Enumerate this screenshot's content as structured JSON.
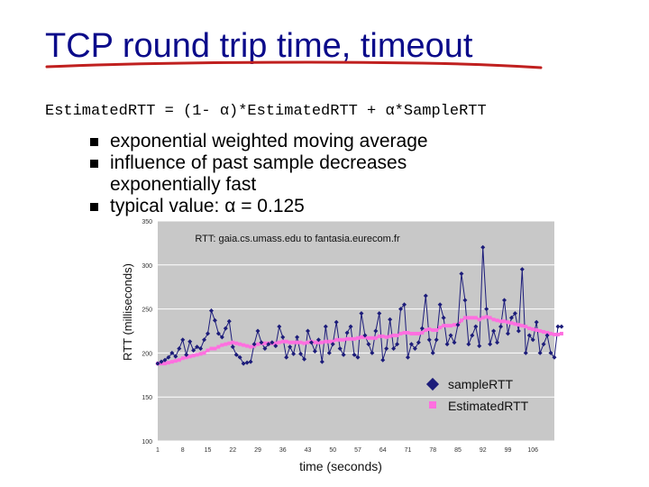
{
  "slide": {
    "title": "TCP round trip time, timeout",
    "formula": "EstimatedRTT = (1- α)*EstimatedRTT + α*SampleRTT",
    "bullets": [
      "exponential weighted moving average",
      "influence of past sample decreases exponentially fast",
      "typical value: α  = 0.125"
    ]
  },
  "colors": {
    "title": "#0b0b8a",
    "underline": "#c0201f",
    "sample": "#1c1c7a",
    "estimated": "#ff3fd6",
    "plot_bg": "#c8c8c8"
  },
  "chart_data": {
    "type": "line",
    "title": "RTT: gaia.cs.umass.edu to fantasia.eurecom.fr",
    "xlabel": "time (seconds)",
    "ylabel": "RTT (milliseconds)",
    "xlim": [
      1,
      112
    ],
    "ylim": [
      100,
      350
    ],
    "x_ticks": [
      1,
      8,
      15,
      22,
      29,
      36,
      43,
      50,
      57,
      64,
      71,
      78,
      85,
      92,
      99,
      106
    ],
    "y_ticks": [
      100,
      150,
      200,
      250,
      300,
      350
    ],
    "grid": true,
    "legend_position": "bottom-right",
    "series": [
      {
        "name": "sampleRTT",
        "marker": "diamond",
        "values": [
          188,
          190,
          192,
          195,
          200,
          196,
          205,
          215,
          198,
          213,
          203,
          207,
          205,
          215,
          222,
          248,
          237,
          222,
          218,
          228,
          236,
          207,
          198,
          195,
          188,
          189,
          190,
          210,
          225,
          212,
          205,
          210,
          212,
          208,
          230,
          218,
          195,
          207,
          199,
          218,
          199,
          193,
          225,
          212,
          202,
          215,
          190,
          230,
          200,
          210,
          235,
          205,
          198,
          223,
          230,
          198,
          195,
          245,
          220,
          210,
          200,
          225,
          245,
          192,
          205,
          238,
          205,
          210,
          250,
          255,
          195,
          210,
          205,
          212,
          228,
          265,
          215,
          200,
          215,
          255,
          240,
          210,
          220,
          212,
          232,
          290,
          260,
          210,
          220,
          230,
          208,
          320,
          250,
          210,
          225,
          212,
          230,
          260,
          222,
          240,
          245,
          225,
          295,
          200,
          220,
          215,
          235,
          200,
          210,
          220,
          200,
          195,
          230,
          230
        ]
      },
      {
        "name": "EstimatedRTT",
        "marker": "square",
        "values": [
          188,
          188,
          188,
          189,
          190,
          191,
          192,
          194,
          195,
          196,
          197,
          198,
          199,
          200,
          203,
          205,
          205,
          207,
          209,
          210,
          211,
          212,
          211,
          210,
          209,
          208,
          207,
          208,
          210,
          211,
          211,
          211,
          211,
          211,
          212,
          213,
          213,
          212,
          212,
          212,
          212,
          211,
          212,
          213,
          212,
          212,
          212,
          213,
          213,
          213,
          215,
          215,
          215,
          216,
          216,
          216,
          217,
          218,
          218,
          217,
          217,
          217,
          219,
          219,
          218,
          219,
          220,
          220,
          222,
          223,
          223,
          222,
          222,
          222,
          223,
          226,
          227,
          226,
          226,
          229,
          231,
          231,
          231,
          232,
          232,
          237,
          240,
          240,
          240,
          240,
          238,
          240,
          241,
          240,
          238,
          237,
          236,
          236,
          235,
          234,
          233,
          232,
          231,
          230,
          228,
          227,
          226,
          225,
          224,
          223,
          222,
          221,
          221,
          222
        ]
      }
    ]
  }
}
